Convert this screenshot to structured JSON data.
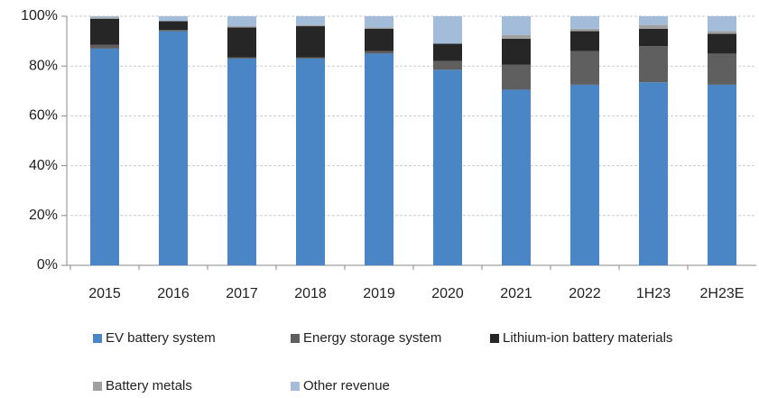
{
  "chart_data": {
    "type": "stacked_bar",
    "categories": [
      "2015",
      "2016",
      "2017",
      "2018",
      "2019",
      "2020",
      "2021",
      "2022",
      "1H23",
      "2H23E"
    ],
    "series": [
      {
        "name": "EV battery system",
        "color": "#4a86c5",
        "values": [
          87,
          94,
          83,
          83,
          85,
          78.5,
          70.5,
          72.5,
          73.5,
          72.5
        ]
      },
      {
        "name": "Energy storage system",
        "color": "#5f5f5f",
        "values": [
          1.5,
          0.5,
          0.5,
          0.5,
          1,
          3.5,
          10,
          13.5,
          14.5,
          12.5
        ]
      },
      {
        "name": "Lithium-ion battery materials",
        "color": "#262626",
        "values": [
          10.5,
          3.5,
          12,
          12.5,
          9,
          7,
          10.5,
          8,
          7,
          8
        ]
      },
      {
        "name": "Battery metals",
        "color": "#a0a0a0",
        "values": [
          0.5,
          0,
          0.5,
          0.5,
          0.5,
          0,
          1.5,
          1,
          1.5,
          1
        ]
      },
      {
        "name": "Other revenue",
        "color": "#a3bcd9",
        "values": [
          0.5,
          2,
          4,
          3.5,
          4.5,
          11,
          7.5,
          5,
          3.5,
          6
        ]
      }
    ],
    "ylim": [
      0,
      100
    ],
    "yticks": [
      {
        "value": 0,
        "label": "0%"
      },
      {
        "value": 20,
        "label": "20%"
      },
      {
        "value": 40,
        "label": "40%"
      },
      {
        "value": 60,
        "label": "60%"
      },
      {
        "value": 80,
        "label": "80%"
      },
      {
        "value": 100,
        "label": "100%"
      }
    ],
    "grid": true
  }
}
